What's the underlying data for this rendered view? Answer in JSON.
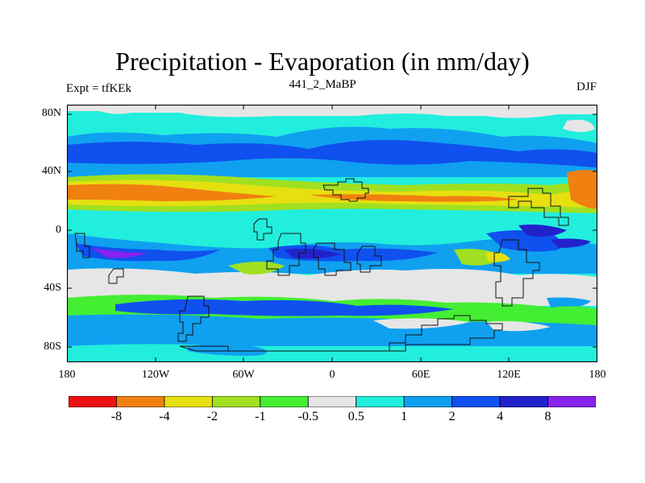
{
  "header": {
    "title": "Precipitation - Evaporation (in mm/day)",
    "subtitle": "441_2_MaBP",
    "left": "Expt = tfKEk",
    "right": "DJF"
  },
  "axes": {
    "y_ticks": [
      "80N",
      "40N",
      "0",
      "40S",
      "80S"
    ],
    "x_ticks": [
      "180",
      "120W",
      "60W",
      "0",
      "60E",
      "120E",
      "180"
    ]
  },
  "colorbar": {
    "colors": [
      "#ee1111",
      "#f08010",
      "#e6e010",
      "#a0e020",
      "#44ee33",
      "#e6e6e6",
      "#22eedd",
      "#10a0f0",
      "#1050ee",
      "#2222cc",
      "#8822ee"
    ],
    "labels": [
      "-8",
      "-4",
      "-2",
      "-1",
      "-0.5",
      "0.5",
      "1",
      "2",
      "4",
      "8"
    ]
  },
  "palette": {
    "gray": "#e6e6e6",
    "cyan": "#22eedd",
    "lightblue": "#10a0f0",
    "blue": "#1050ee",
    "darkblue": "#2222cc",
    "purple": "#8822ee",
    "green": "#44ee33",
    "lime": "#a0e020",
    "yellow": "#e6e010",
    "orange": "#f08010",
    "red": "#ee1111"
  }
}
